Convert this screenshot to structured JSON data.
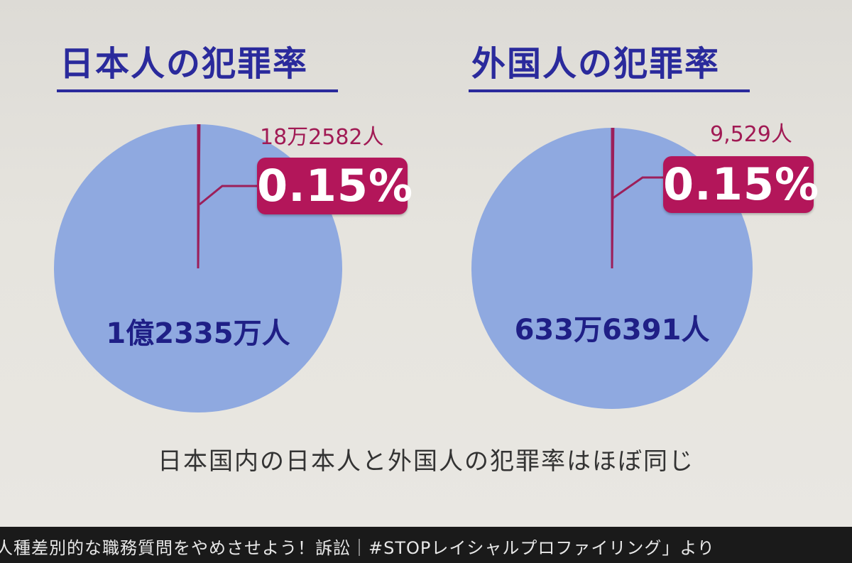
{
  "chart_data": [
    {
      "type": "pie",
      "title": "日本人の犯罪率",
      "slices": [
        {
          "label": "1億2335万人",
          "value": 99.85,
          "color": "#8fa9e0"
        },
        {
          "label": "18万2582人",
          "value": 0.15,
          "color": "#8fa9e0"
        }
      ],
      "highlight_label": "0.15%",
      "highlight_color": "#b3165a"
    },
    {
      "type": "pie",
      "title": "外国人の犯罪率",
      "slices": [
        {
          "label": "633万6391人",
          "value": 99.85,
          "color": "#8fa9e0"
        },
        {
          "label": "9,529人",
          "value": 0.15,
          "color": "#8fa9e0"
        }
      ],
      "highlight_label": "0.15%",
      "highlight_color": "#b3165a"
    }
  ],
  "caption": "日本国内の日本人と外国人の犯罪率はほぼ同じ",
  "source": "人種差別的な職務質問をやめさせよう！訴訟｜#STOPレイシャルプロファイリング」より",
  "colors": {
    "title": "#2a2a9c",
    "pie_fill": "#8fa9e0",
    "separator_line": "#9c1f5a",
    "badge": "#b3165a"
  }
}
